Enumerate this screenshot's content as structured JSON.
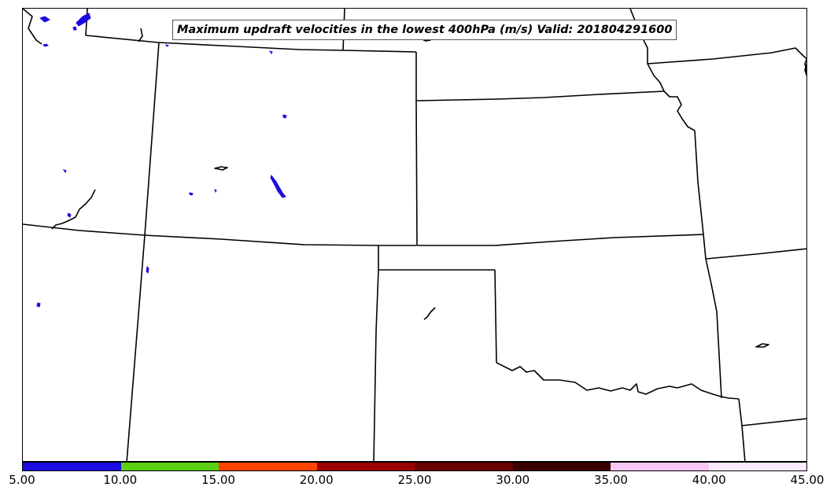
{
  "title": "Maximum updraft velocities in the lowest 400hPa (m/s) Valid: 201804291600",
  "colorbar": {
    "colors": [
      "#1a0be0",
      "#5ccf10",
      "#ff4400",
      "#9a0000",
      "#6a0000",
      "#3a0000",
      "#f7c6f3",
      "#fde9fd"
    ],
    "tick_labels": [
      "5.00",
      "10.00",
      "15.00",
      "20.00",
      "25.00",
      "30.00",
      "35.00",
      "40.00",
      "45.00"
    ],
    "min": 5,
    "max": 45
  },
  "colors": {
    "state_border": "#000000",
    "updraft_fill": "#1a0be0"
  }
}
